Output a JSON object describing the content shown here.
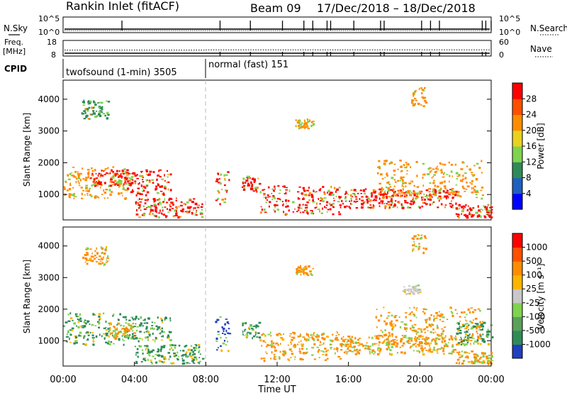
{
  "header": {
    "title": "Rankin Inlet (fitACF)",
    "beam": "Beam 09",
    "date_range": "17/Dec/2018 – 18/Dec/2018"
  },
  "left_labels": {
    "nsky": "N.Sky",
    "freq_line1": "Freq.",
    "freq_line2": "[MHz]",
    "cpid": "CPID"
  },
  "right_labels": {
    "nsearch": "N.Search",
    "nave": "Nave"
  },
  "cpid_segments": [
    {
      "label": "twofsound (1-min) 3505",
      "start_h": 0,
      "end_h": 8
    },
    {
      "label": "normal (fast) 151",
      "start_h": 8,
      "end_h": 24
    }
  ],
  "colors": {
    "power_red": "#ff0000",
    "power_orange": "#ff8c00",
    "power_green": "#2e8b57",
    "power_blue": "#1f3fbf",
    "vel_blue": "#1f3fbf",
    "vel_green": "#2e8b57",
    "vel_grey": "#c8c8c8",
    "vel_orange": "#ff8c00",
    "vel_red": "#ff0000"
  },
  "chart_data": [
    {
      "type": "line",
      "panel": "noise",
      "left_axis_ticks": [
        "10^5",
        "10^0"
      ],
      "right_axis_ticks": [
        "10^5",
        "10^0"
      ],
      "spike_hours": [
        3.3,
        8.8,
        10.5,
        12.3,
        13.5,
        14.0,
        14.8,
        15.0,
        16.3,
        17.8,
        18.0,
        20.1,
        20.6,
        21.1,
        23.5,
        23.7,
        24.0
      ],
      "series": [
        {
          "values": []
        }
      ]
    },
    {
      "type": "line",
      "panel": "frequency",
      "left_axis_ticks": [
        "18",
        "8"
      ],
      "right_axis_ticks": [
        "60",
        "0"
      ],
      "freq_mhz_before_08": 11.8,
      "freq_mhz_after_08": 12.0,
      "tick_hours": [
        8.8,
        10.5,
        12.3,
        13.5,
        14.0,
        14.8,
        15.0,
        16.3,
        17.8,
        18.0,
        20.1,
        20.6,
        21.1,
        23.5,
        23.7
      ]
    },
    {
      "type": "heatmap",
      "panel": "power",
      "xlabel": "",
      "ylabel": "Slant Range [km]",
      "xlim_h": [
        0,
        24
      ],
      "ylim_km": [
        200,
        4600
      ],
      "y_ticks": [
        "1000",
        "2000",
        "3000",
        "4000"
      ],
      "colorbar_label": "Power [dB]",
      "colorbar_ticks": [
        "4",
        "8",
        "12",
        "16",
        "20",
        "24",
        "28"
      ],
      "colorbar_colors": [
        "#0000ff",
        "#1f5fbf",
        "#2e8b57",
        "#7fd34e",
        "#e8d21e",
        "#ff8c00",
        "#ff5000",
        "#ff0000"
      ],
      "echo_regions": [
        {
          "h0": 0.0,
          "h1": 3.5,
          "r0": 900,
          "r1": 1900,
          "level": "orange"
        },
        {
          "h0": 1.5,
          "h1": 3.8,
          "r0": 1300,
          "r1": 1800,
          "level": "red"
        },
        {
          "h0": 3.5,
          "h1": 6.0,
          "r0": 1000,
          "r1": 1800,
          "level": "red"
        },
        {
          "h0": 4.0,
          "h1": 7.8,
          "r0": 300,
          "r1": 900,
          "level": "red"
        },
        {
          "h0": 8.5,
          "h1": 9.3,
          "r0": 700,
          "r1": 1800,
          "level": "red"
        },
        {
          "h0": 10.0,
          "h1": 11.0,
          "r0": 1100,
          "r1": 1600,
          "level": "red"
        },
        {
          "h0": 11.0,
          "h1": 15.5,
          "r0": 400,
          "r1": 1300,
          "level": "red"
        },
        {
          "h0": 15.5,
          "h1": 22.0,
          "r0": 600,
          "r1": 1200,
          "level": "red"
        },
        {
          "h0": 17.5,
          "h1": 23.5,
          "r0": 900,
          "r1": 2100,
          "level": "orange"
        },
        {
          "h0": 22.0,
          "h1": 24.0,
          "r0": 300,
          "r1": 700,
          "level": "red"
        },
        {
          "h0": 1.0,
          "h1": 2.5,
          "r0": 3400,
          "r1": 4000,
          "level": "green"
        },
        {
          "h0": 13.0,
          "h1": 14.0,
          "r0": 3100,
          "r1": 3400,
          "level": "orange"
        },
        {
          "h0": 19.5,
          "h1": 20.3,
          "r0": 3800,
          "r1": 4400,
          "level": "orange"
        }
      ]
    },
    {
      "type": "heatmap",
      "panel": "velocity",
      "xlabel": "Time UT",
      "ylabel": "Slant Range [km]",
      "xlim_h": [
        0,
        24
      ],
      "ylim_km": [
        200,
        4600
      ],
      "x_ticks": [
        "00:00",
        "04:00",
        "08:00",
        "12:00",
        "16:00",
        "20:00",
        "00:00"
      ],
      "y_ticks": [
        "1000",
        "2000",
        "3000",
        "4000"
      ],
      "colorbar_label": "Velocity [m s⁻¹]",
      "colorbar_ticks": [
        "1000",
        "500",
        "100",
        "25",
        "-25",
        "-100",
        "-500",
        "-1000"
      ],
      "colorbar_colors": [
        "#1f3fbf",
        "#2e8b57",
        "#5aa05a",
        "#7fd34e",
        "#c8c8c8",
        "#ffb400",
        "#ff8c00",
        "#ff5000",
        "#ff0000"
      ],
      "echo_regions": [
        {
          "h0": 0.0,
          "h1": 3.5,
          "r0": 900,
          "r1": 1900,
          "level": "green"
        },
        {
          "h0": 2.5,
          "h1": 4.0,
          "r0": 1100,
          "r1": 1600,
          "level": "orange"
        },
        {
          "h0": 3.5,
          "h1": 6.0,
          "r0": 1000,
          "r1": 1800,
          "level": "green"
        },
        {
          "h0": 4.0,
          "h1": 7.8,
          "r0": 300,
          "r1": 900,
          "level": "green"
        },
        {
          "h0": 8.5,
          "h1": 9.3,
          "r0": 700,
          "r1": 1800,
          "level": "blue"
        },
        {
          "h0": 10.0,
          "h1": 11.0,
          "r0": 1100,
          "r1": 1600,
          "level": "green"
        },
        {
          "h0": 11.0,
          "h1": 15.5,
          "r0": 400,
          "r1": 1300,
          "level": "orange"
        },
        {
          "h0": 15.5,
          "h1": 22.0,
          "r0": 600,
          "r1": 1200,
          "level": "orange"
        },
        {
          "h0": 17.5,
          "h1": 23.5,
          "r0": 900,
          "r1": 2100,
          "level": "orange"
        },
        {
          "h0": 19.0,
          "h1": 20.0,
          "r0": 2500,
          "r1": 2800,
          "level": "grey"
        },
        {
          "h0": 22.0,
          "h1": 24.0,
          "r0": 900,
          "r1": 1600,
          "level": "green"
        },
        {
          "h0": 22.0,
          "h1": 24.0,
          "r0": 300,
          "r1": 700,
          "level": "orange"
        },
        {
          "h0": 1.0,
          "h1": 2.5,
          "r0": 3400,
          "r1": 4000,
          "level": "orange"
        },
        {
          "h0": 13.0,
          "h1": 14.0,
          "r0": 3100,
          "r1": 3400,
          "level": "orange"
        },
        {
          "h0": 19.5,
          "h1": 20.3,
          "r0": 3800,
          "r1": 4400,
          "level": "orange"
        }
      ]
    }
  ]
}
